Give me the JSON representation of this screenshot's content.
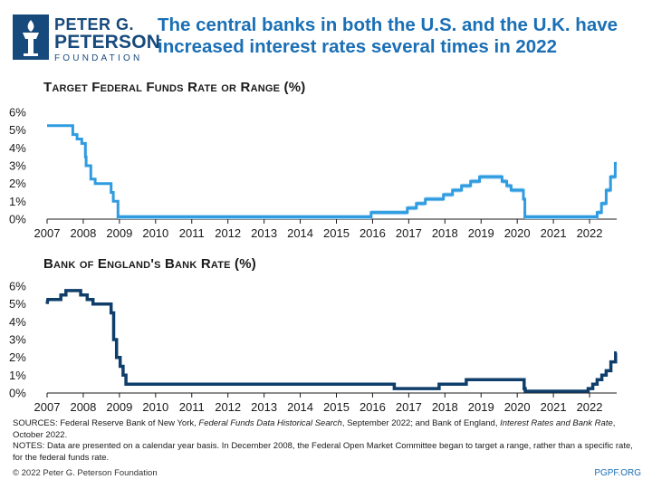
{
  "header": {
    "logo_line1": "PETER G.",
    "logo_line2": "PETERSON",
    "logo_line3": "FOUNDATION",
    "headline": "The central banks in both the U.S. and the U.K. have increased interest rates several times in 2022"
  },
  "colors": {
    "brand_navy": "#174a7c",
    "fed_line": "#2f9be0",
    "fed_band": "#a9d6f3",
    "boe_line": "#0f3e6b",
    "headline": "#1a6fb5"
  },
  "chart_data": [
    {
      "type": "line",
      "title": "Target Federal Funds Rate or Range (%)",
      "xlim": [
        2007,
        2022.75
      ],
      "ylim": [
        0,
        6
      ],
      "x_ticks": [
        "2007",
        "2008",
        "2009",
        "2010",
        "2011",
        "2012",
        "2013",
        "2014",
        "2015",
        "2016",
        "2017",
        "2018",
        "2019",
        "2020",
        "2021",
        "2022"
      ],
      "y_ticks": [
        "0%",
        "1%",
        "2%",
        "3%",
        "4%",
        "5%",
        "6%"
      ],
      "grid": false,
      "series": [
        {
          "style": "range",
          "points": [
            [
              2007.0,
              5.25,
              5.25
            ],
            [
              2007.71,
              5.25,
              5.25
            ],
            [
              2007.71,
              4.75,
              4.75
            ],
            [
              2007.83,
              4.75,
              4.75
            ],
            [
              2007.83,
              4.5,
              4.5
            ],
            [
              2007.96,
              4.5,
              4.5
            ],
            [
              2007.96,
              4.25,
              4.25
            ],
            [
              2008.06,
              4.25,
              4.25
            ],
            [
              2008.06,
              3.5,
              3.5
            ],
            [
              2008.08,
              3.5,
              3.5
            ],
            [
              2008.08,
              3.0,
              3.0
            ],
            [
              2008.21,
              3.0,
              3.0
            ],
            [
              2008.21,
              2.25,
              2.25
            ],
            [
              2008.33,
              2.25,
              2.25
            ],
            [
              2008.33,
              2.0,
              2.0
            ],
            [
              2008.77,
              2.0,
              2.0
            ],
            [
              2008.77,
              1.5,
              1.5
            ],
            [
              2008.83,
              1.5,
              1.5
            ],
            [
              2008.83,
              1.0,
              1.0
            ],
            [
              2008.96,
              1.0,
              1.0
            ],
            [
              2008.96,
              0.0,
              0.25
            ],
            [
              2015.96,
              0.0,
              0.25
            ],
            [
              2015.96,
              0.25,
              0.5
            ],
            [
              2016.96,
              0.25,
              0.5
            ],
            [
              2016.96,
              0.5,
              0.75
            ],
            [
              2017.21,
              0.5,
              0.75
            ],
            [
              2017.21,
              0.75,
              1.0
            ],
            [
              2017.46,
              0.75,
              1.0
            ],
            [
              2017.46,
              1.0,
              1.25
            ],
            [
              2017.96,
              1.0,
              1.25
            ],
            [
              2017.96,
              1.25,
              1.5
            ],
            [
              2018.21,
              1.25,
              1.5
            ],
            [
              2018.21,
              1.5,
              1.75
            ],
            [
              2018.46,
              1.5,
              1.75
            ],
            [
              2018.46,
              1.75,
              2.0
            ],
            [
              2018.71,
              1.75,
              2.0
            ],
            [
              2018.71,
              2.0,
              2.25
            ],
            [
              2018.96,
              2.0,
              2.25
            ],
            [
              2018.96,
              2.25,
              2.5
            ],
            [
              2019.58,
              2.25,
              2.5
            ],
            [
              2019.58,
              2.0,
              2.25
            ],
            [
              2019.71,
              2.0,
              2.25
            ],
            [
              2019.71,
              1.75,
              2.0
            ],
            [
              2019.83,
              1.75,
              2.0
            ],
            [
              2019.83,
              1.5,
              1.75
            ],
            [
              2020.17,
              1.5,
              1.75
            ],
            [
              2020.17,
              1.0,
              1.25
            ],
            [
              2020.21,
              1.0,
              1.25
            ],
            [
              2020.21,
              0.0,
              0.25
            ],
            [
              2022.21,
              0.0,
              0.25
            ],
            [
              2022.21,
              0.25,
              0.5
            ],
            [
              2022.33,
              0.25,
              0.5
            ],
            [
              2022.33,
              0.75,
              1.0
            ],
            [
              2022.46,
              0.75,
              1.0
            ],
            [
              2022.46,
              1.5,
              1.75
            ],
            [
              2022.58,
              1.5,
              1.75
            ],
            [
              2022.58,
              2.25,
              2.5
            ],
            [
              2022.71,
              2.25,
              2.5
            ],
            [
              2022.71,
              3.0,
              3.25
            ],
            [
              2022.75,
              3.0,
              3.25
            ]
          ]
        }
      ]
    },
    {
      "type": "line",
      "title": "Bank of England's Bank Rate (%)",
      "xlim": [
        2007,
        2022.75
      ],
      "ylim": [
        0,
        6
      ],
      "x_ticks": [
        "2007",
        "2008",
        "2009",
        "2010",
        "2011",
        "2012",
        "2013",
        "2014",
        "2015",
        "2016",
        "2017",
        "2018",
        "2019",
        "2020",
        "2021",
        "2022"
      ],
      "y_ticks": [
        "0%",
        "1%",
        "2%",
        "3%",
        "4%",
        "5%",
        "6%"
      ],
      "grid": false,
      "series": [
        {
          "style": "step",
          "points": [
            [
              2007.0,
              5.0
            ],
            [
              2007.02,
              5.25
            ],
            [
              2007.38,
              5.25
            ],
            [
              2007.38,
              5.5
            ],
            [
              2007.52,
              5.5
            ],
            [
              2007.52,
              5.75
            ],
            [
              2007.93,
              5.75
            ],
            [
              2007.93,
              5.5
            ],
            [
              2008.11,
              5.5
            ],
            [
              2008.11,
              5.25
            ],
            [
              2008.27,
              5.25
            ],
            [
              2008.27,
              5.0
            ],
            [
              2008.77,
              5.0
            ],
            [
              2008.77,
              4.5
            ],
            [
              2008.84,
              4.5
            ],
            [
              2008.84,
              3.0
            ],
            [
              2008.92,
              3.0
            ],
            [
              2008.92,
              2.0
            ],
            [
              2009.02,
              2.0
            ],
            [
              2009.02,
              1.5
            ],
            [
              2009.1,
              1.5
            ],
            [
              2009.1,
              1.0
            ],
            [
              2009.18,
              1.0
            ],
            [
              2009.18,
              0.5
            ],
            [
              2016.6,
              0.5
            ],
            [
              2016.6,
              0.25
            ],
            [
              2017.84,
              0.25
            ],
            [
              2017.84,
              0.5
            ],
            [
              2018.59,
              0.5
            ],
            [
              2018.59,
              0.75
            ],
            [
              2020.19,
              0.75
            ],
            [
              2020.19,
              0.25
            ],
            [
              2020.22,
              0.25
            ],
            [
              2020.22,
              0.1
            ],
            [
              2021.96,
              0.1
            ],
            [
              2021.96,
              0.25
            ],
            [
              2022.09,
              0.25
            ],
            [
              2022.09,
              0.5
            ],
            [
              2022.21,
              0.5
            ],
            [
              2022.21,
              0.75
            ],
            [
              2022.34,
              0.75
            ],
            [
              2022.34,
              1.0
            ],
            [
              2022.46,
              1.0
            ],
            [
              2022.46,
              1.25
            ],
            [
              2022.59,
              1.25
            ],
            [
              2022.59,
              1.75
            ],
            [
              2022.72,
              1.75
            ],
            [
              2022.72,
              2.25
            ],
            [
              2022.75,
              2.25
            ]
          ]
        }
      ]
    }
  ],
  "notes": {
    "sources_prefix": "SOURCES: Federal Reserve Bank of New York, ",
    "sources_title1": "Federal Funds Data Historical Search",
    "sources_mid": ", September 2022; and Bank of England, ",
    "sources_title2": "Interest Rates and Bank Rate",
    "sources_suffix": ", October 2022.",
    "notes_text": "NOTES: Data are presented on a calendar year basis. In December 2008, the Federal Open Market Committee began to target a range, rather than a specific rate, for the federal funds rate."
  },
  "footer": {
    "copyright": "© 2022 Peter G. Peterson Foundation",
    "site": "PGPF.ORG"
  }
}
